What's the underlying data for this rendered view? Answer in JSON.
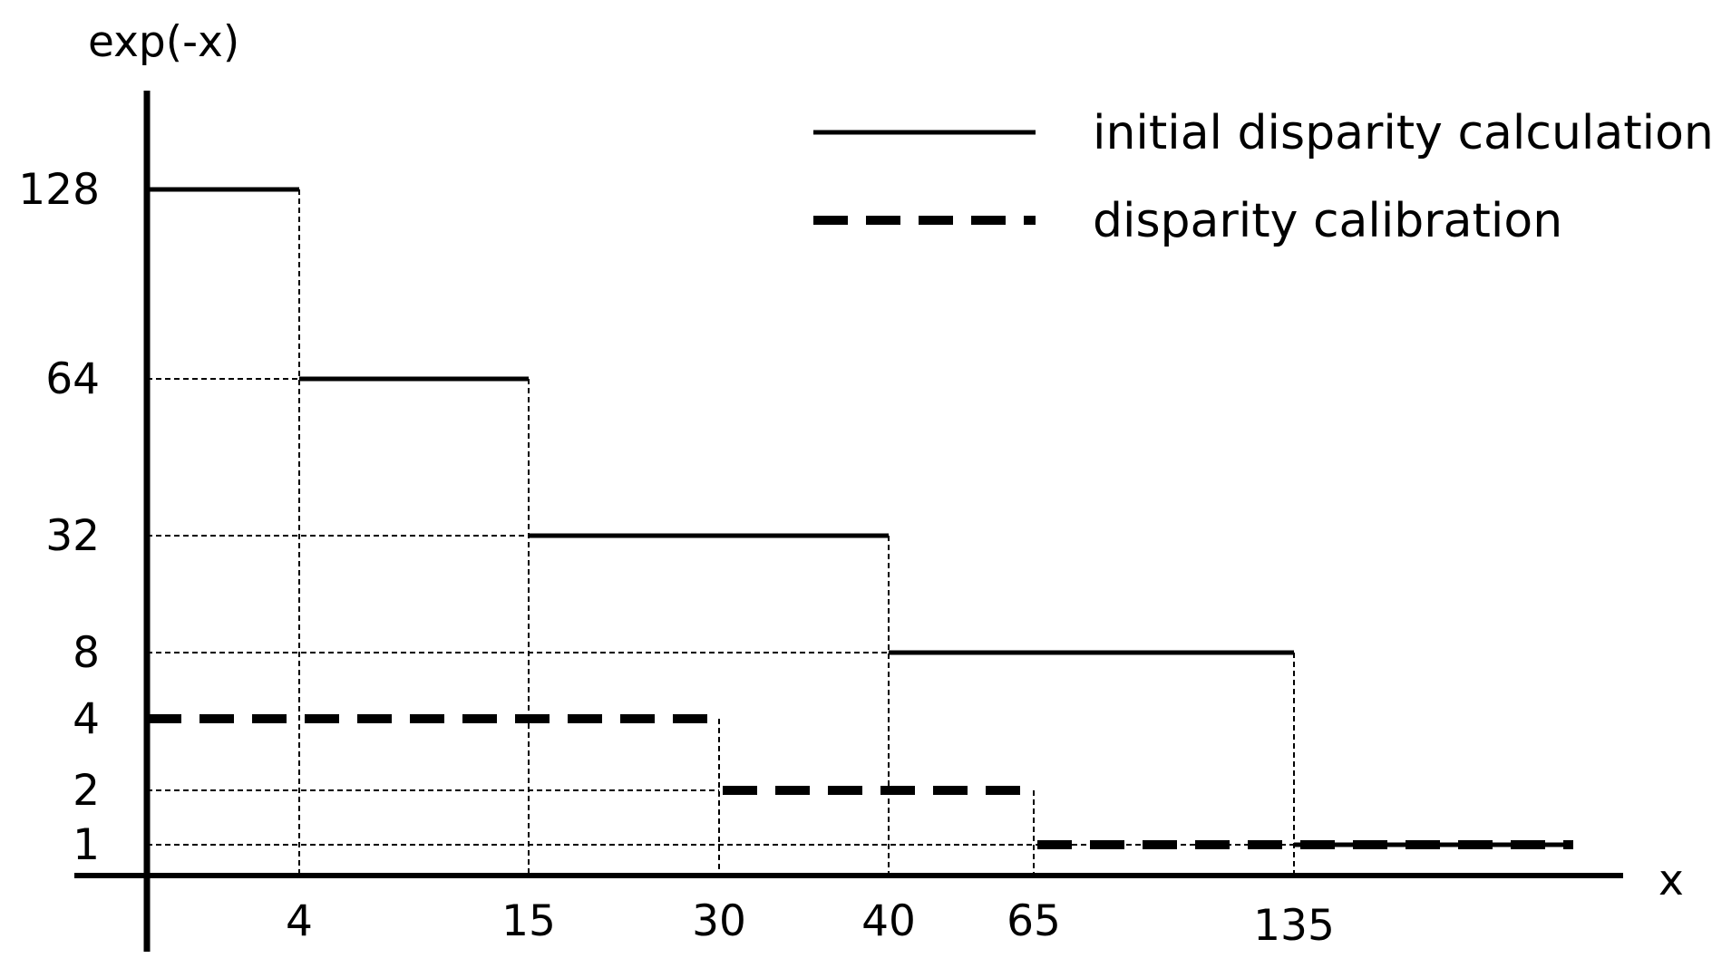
{
  "chart_data": {
    "type": "line",
    "title": "",
    "xlabel": "x",
    "ylabel": "exp(-x)",
    "x_ticks": [
      "4",
      "15",
      "30",
      "40",
      "65",
      "135"
    ],
    "y_ticks": [
      "128",
      "64",
      "32",
      "8",
      "4",
      "2",
      "1"
    ],
    "grid": false,
    "legend_position": "top-right",
    "series": [
      {
        "name": "initial disparity calculation",
        "style": "solid",
        "color": "#000000",
        "steps": [
          {
            "x_start": 0,
            "x_end": 4,
            "y": 128
          },
          {
            "x_start": 4,
            "x_end": 15,
            "y": 64
          },
          {
            "x_start": 15,
            "x_end": 40,
            "y": 32
          },
          {
            "x_start": 40,
            "x_end": 135,
            "y": 8
          },
          {
            "x_start": 135,
            "x_end": null,
            "y": 1
          }
        ]
      },
      {
        "name": "disparity calibration",
        "style": "dashed",
        "color": "#000000",
        "steps": [
          {
            "x_start": 0,
            "x_end": 30,
            "y": 4
          },
          {
            "x_start": 30,
            "x_end": 65,
            "y": 2
          },
          {
            "x_start": 65,
            "x_end": null,
            "y": 1
          }
        ]
      }
    ]
  }
}
